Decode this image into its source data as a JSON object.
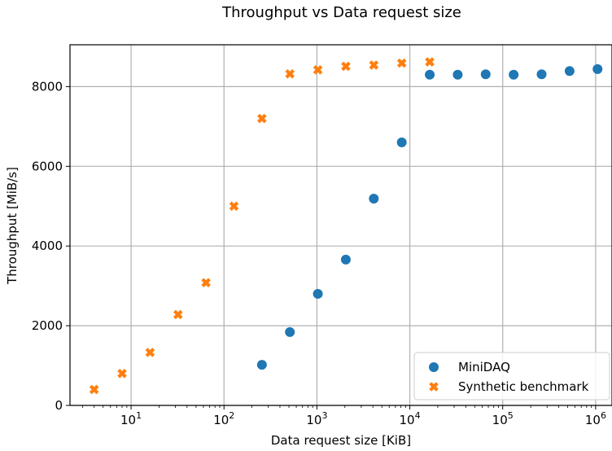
{
  "chart_data": {
    "type": "scatter",
    "title": "Throughput vs Data request size",
    "xlabel": "Data request size [KiB]",
    "ylabel": "Throughput [MiB/s]",
    "xscale": "log",
    "xlim": [
      2.2,
      1500000
    ],
    "ylim": [
      0,
      9050
    ],
    "x_tick_labels": [
      {
        "base": "10",
        "exp": "1",
        "value": 10
      },
      {
        "base": "10",
        "exp": "2",
        "value": 100
      },
      {
        "base": "10",
        "exp": "3",
        "value": 1000
      },
      {
        "base": "10",
        "exp": "4",
        "value": 10000
      },
      {
        "base": "10",
        "exp": "5",
        "value": 100000
      },
      {
        "base": "10",
        "exp": "6",
        "value": 1000000
      }
    ],
    "y_ticks": [
      0,
      2000,
      4000,
      6000,
      8000
    ],
    "y_tick_labels": [
      "0",
      "2000",
      "4000",
      "6000",
      "8000"
    ],
    "grid": true,
    "legend_position": "bottom-right",
    "series": [
      {
        "name": "MiniDAQ",
        "marker": "circle",
        "color": "#1f77b4",
        "x": [
          256,
          512,
          1024,
          2048,
          4096,
          8192,
          16384,
          32768,
          65536,
          131072,
          262144,
          524288,
          1048576
        ],
        "y": [
          1020,
          1840,
          2800,
          3660,
          5190,
          6600,
          8300,
          8300,
          8310,
          8300,
          8310,
          8390,
          8440
        ]
      },
      {
        "name": "Synthetic benchmark",
        "marker": "x",
        "color": "#ff7f0e",
        "x": [
          4,
          8,
          16,
          32,
          64,
          128,
          256,
          512,
          1024,
          2048,
          4096,
          8192,
          16384
        ],
        "y": [
          400,
          800,
          1330,
          2280,
          3080,
          5000,
          7200,
          8320,
          8420,
          8510,
          8540,
          8590,
          8620
        ]
      }
    ]
  }
}
